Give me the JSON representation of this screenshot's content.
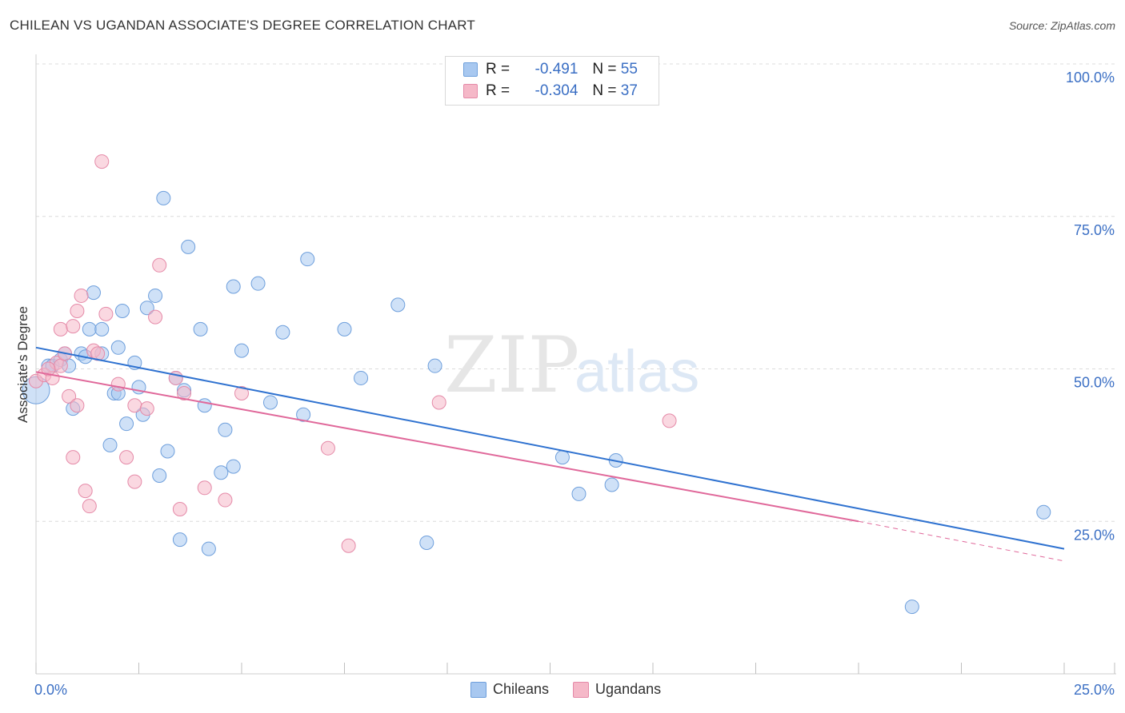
{
  "title": "CHILEAN VS UGANDAN ASSOCIATE'S DEGREE CORRELATION CHART",
  "source": "Source: ZipAtlas.com",
  "watermark": {
    "part1": "ZIP",
    "part2": "atlas"
  },
  "legend": {
    "rows": [
      {
        "r_label": "R =",
        "r_value": "-0.491",
        "n_label": "N =",
        "n_value": "55",
        "color": "#a8c8f0"
      },
      {
        "r_label": "R =",
        "r_value": "-0.304",
        "n_label": "N =",
        "n_value": "37",
        "color": "#f5b8c8"
      }
    ]
  },
  "bottom_legend": {
    "series1": "Chileans",
    "series2": "Ugandans"
  },
  "colors": {
    "blue_fill": "#a8c8f0",
    "blue_line": "#2f72d0",
    "pink_fill": "#f5b8c8",
    "pink_line": "#e0689a",
    "tick_label": "#3b6fc4"
  },
  "chart_data": {
    "type": "scatter",
    "ylabel": "Associate's Degree",
    "x_tick_labels": {
      "min": "0.0%",
      "max": "25.0%"
    },
    "y_tick_labels": [
      "100.0%",
      "75.0%",
      "50.0%",
      "25.0%"
    ],
    "xlim": [
      0,
      25
    ],
    "ylim": [
      0,
      100
    ],
    "y_ticks": [
      100,
      75,
      50,
      25
    ],
    "grid": true,
    "series": [
      {
        "name": "Chileans",
        "color": "#a8c8f0",
        "stroke": "#6e9fdc",
        "points": [
          [
            0.0,
            46.5
          ],
          [
            0.3,
            50.5
          ],
          [
            0.4,
            50.5
          ],
          [
            0.6,
            51.5
          ],
          [
            0.7,
            52.5
          ],
          [
            0.8,
            50.5
          ],
          [
            0.9,
            43.5
          ],
          [
            1.1,
            52.5
          ],
          [
            1.2,
            52.0
          ],
          [
            1.3,
            56.5
          ],
          [
            1.4,
            62.5
          ],
          [
            1.6,
            52.5
          ],
          [
            1.6,
            56.5
          ],
          [
            1.8,
            37.5
          ],
          [
            1.9,
            46.0
          ],
          [
            2.0,
            53.5
          ],
          [
            2.1,
            59.5
          ],
          [
            2.2,
            41.0
          ],
          [
            2.4,
            51.0
          ],
          [
            2.5,
            47.0
          ],
          [
            2.6,
            42.5
          ],
          [
            2.7,
            60.0
          ],
          [
            2.9,
            62.0
          ],
          [
            3.0,
            32.5
          ],
          [
            3.1,
            78.0
          ],
          [
            3.2,
            36.5
          ],
          [
            3.4,
            48.5
          ],
          [
            3.5,
            22.0
          ],
          [
            3.6,
            46.5
          ],
          [
            3.7,
            70.0
          ],
          [
            4.0,
            56.5
          ],
          [
            4.1,
            44.0
          ],
          [
            4.2,
            20.5
          ],
          [
            4.5,
            33.0
          ],
          [
            4.6,
            40.0
          ],
          [
            4.8,
            63.5
          ],
          [
            4.8,
            34.0
          ],
          [
            5.0,
            53.0
          ],
          [
            5.4,
            64.0
          ],
          [
            5.7,
            44.5
          ],
          [
            6.0,
            56.0
          ],
          [
            6.5,
            42.5
          ],
          [
            6.6,
            68.0
          ],
          [
            7.5,
            56.5
          ],
          [
            7.9,
            48.5
          ],
          [
            8.8,
            60.5
          ],
          [
            9.5,
            21.5
          ],
          [
            9.7,
            50.5
          ],
          [
            12.8,
            35.5
          ],
          [
            13.2,
            29.5
          ],
          [
            14.0,
            31.0
          ],
          [
            14.1,
            35.0
          ],
          [
            21.3,
            11.0
          ],
          [
            24.5,
            26.5
          ],
          [
            2.0,
            46.0
          ]
        ],
        "trend": [
          [
            0,
            53.5
          ],
          [
            25,
            20.5
          ]
        ]
      },
      {
        "name": "Ugandans",
        "color": "#f5b8c8",
        "stroke": "#e58aa8",
        "points": [
          [
            0.0,
            48.0
          ],
          [
            0.2,
            49.0
          ],
          [
            0.4,
            48.5
          ],
          [
            0.5,
            51.0
          ],
          [
            0.6,
            50.5
          ],
          [
            0.6,
            56.5
          ],
          [
            0.7,
            52.5
          ],
          [
            0.8,
            45.5
          ],
          [
            0.9,
            57.0
          ],
          [
            0.9,
            35.5
          ],
          [
            1.0,
            59.5
          ],
          [
            1.0,
            44.0
          ],
          [
            1.1,
            62.0
          ],
          [
            1.2,
            30.0
          ],
          [
            1.3,
            27.5
          ],
          [
            1.4,
            53.0
          ],
          [
            1.6,
            84.0
          ],
          [
            1.7,
            59.0
          ],
          [
            2.0,
            47.5
          ],
          [
            2.2,
            35.5
          ],
          [
            2.4,
            44.0
          ],
          [
            2.4,
            31.5
          ],
          [
            2.7,
            43.5
          ],
          [
            2.9,
            58.5
          ],
          [
            3.0,
            67.0
          ],
          [
            3.4,
            48.5
          ],
          [
            3.5,
            27.0
          ],
          [
            3.6,
            46.0
          ],
          [
            4.1,
            30.5
          ],
          [
            4.6,
            28.5
          ],
          [
            5.0,
            46.0
          ],
          [
            7.1,
            37.0
          ],
          [
            7.6,
            21.0
          ],
          [
            9.8,
            44.5
          ],
          [
            15.4,
            41.5
          ],
          [
            0.3,
            50.0
          ],
          [
            1.5,
            52.5
          ]
        ],
        "trend": [
          [
            0,
            49.5
          ],
          [
            20,
            25.0
          ]
        ],
        "trend_dashed": [
          [
            20,
            25.0
          ],
          [
            25,
            18.5
          ]
        ]
      }
    ]
  }
}
